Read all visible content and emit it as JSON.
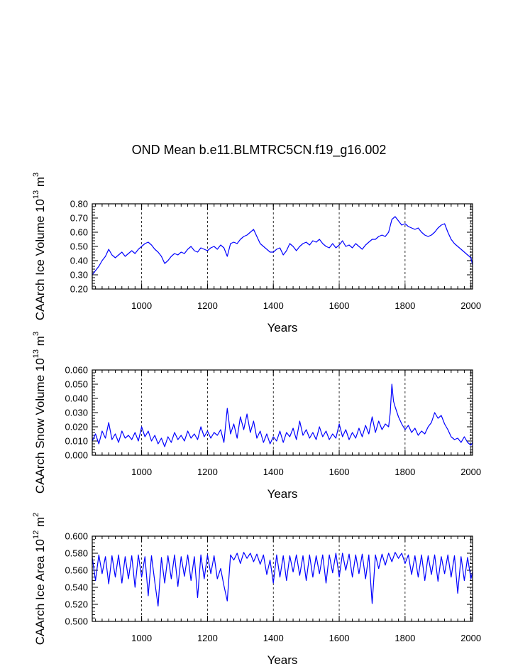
{
  "title": "OND Mean b.e11.BLMTRC5CN.f19_g16.002",
  "colors": {
    "series": "#0000ff",
    "axis": "#000000",
    "grid": "#000000"
  },
  "chart_data": [
    {
      "type": "line",
      "ylabel": "CAArch Ice Volume 10",
      "ylabel_exp": "13",
      "ylabel_unit": " m",
      "ylabel_unit_exp": "3",
      "xlabel": "Years",
      "xlim": [
        850,
        2005
      ],
      "ylim": [
        0.2,
        0.8
      ],
      "xticks": [
        1000,
        1200,
        1400,
        1600,
        1800,
        2000
      ],
      "yticks": [
        0.2,
        0.3,
        0.4,
        0.5,
        0.6,
        0.7,
        0.8
      ],
      "ytick_labels": [
        "0.20",
        "0.30",
        "0.40",
        "0.50",
        "0.60",
        "0.70",
        "0.80"
      ],
      "grid_x": true,
      "series": [
        {
          "name": "Ice Volume",
          "x": [
            850,
            860,
            870,
            880,
            890,
            900,
            910,
            920,
            930,
            940,
            950,
            960,
            970,
            980,
            990,
            1000,
            1010,
            1020,
            1030,
            1040,
            1050,
            1060,
            1070,
            1080,
            1090,
            1100,
            1110,
            1120,
            1130,
            1140,
            1150,
            1160,
            1170,
            1180,
            1190,
            1200,
            1210,
            1220,
            1230,
            1240,
            1250,
            1260,
            1270,
            1280,
            1290,
            1300,
            1310,
            1320,
            1330,
            1340,
            1350,
            1360,
            1370,
            1380,
            1390,
            1400,
            1410,
            1420,
            1430,
            1440,
            1450,
            1460,
            1470,
            1480,
            1490,
            1500,
            1510,
            1520,
            1530,
            1540,
            1550,
            1560,
            1570,
            1580,
            1590,
            1600,
            1610,
            1620,
            1630,
            1640,
            1650,
            1660,
            1670,
            1680,
            1690,
            1700,
            1710,
            1720,
            1730,
            1740,
            1750,
            1760,
            1770,
            1780,
            1790,
            1800,
            1810,
            1820,
            1830,
            1840,
            1850,
            1860,
            1870,
            1880,
            1890,
            1900,
            1910,
            1920,
            1930,
            1940,
            1950,
            1960,
            1970,
            1980,
            1990,
            2000,
            2005
          ],
          "y": [
            0.3,
            0.33,
            0.36,
            0.4,
            0.43,
            0.48,
            0.44,
            0.42,
            0.44,
            0.46,
            0.43,
            0.45,
            0.47,
            0.45,
            0.48,
            0.5,
            0.52,
            0.53,
            0.51,
            0.48,
            0.46,
            0.43,
            0.38,
            0.4,
            0.43,
            0.45,
            0.44,
            0.46,
            0.45,
            0.48,
            0.5,
            0.47,
            0.46,
            0.49,
            0.48,
            0.47,
            0.49,
            0.5,
            0.48,
            0.51,
            0.49,
            0.43,
            0.52,
            0.53,
            0.52,
            0.55,
            0.57,
            0.58,
            0.6,
            0.62,
            0.57,
            0.52,
            0.5,
            0.48,
            0.46,
            0.46,
            0.48,
            0.49,
            0.44,
            0.47,
            0.52,
            0.5,
            0.47,
            0.5,
            0.52,
            0.53,
            0.51,
            0.54,
            0.53,
            0.55,
            0.52,
            0.5,
            0.49,
            0.52,
            0.49,
            0.51,
            0.54,
            0.5,
            0.51,
            0.49,
            0.52,
            0.5,
            0.48,
            0.51,
            0.53,
            0.55,
            0.55,
            0.57,
            0.58,
            0.57,
            0.6,
            0.69,
            0.71,
            0.68,
            0.65,
            0.66,
            0.64,
            0.63,
            0.62,
            0.63,
            0.6,
            0.58,
            0.57,
            0.58,
            0.6,
            0.63,
            0.65,
            0.66,
            0.6,
            0.55,
            0.52,
            0.5,
            0.48,
            0.46,
            0.44,
            0.42,
            0.37
          ]
        }
      ]
    },
    {
      "type": "line",
      "ylabel": "CAArch Snow Volume 10",
      "ylabel_exp": "13",
      "ylabel_unit": " m",
      "ylabel_unit_exp": "3",
      "xlabel": "Years",
      "xlim": [
        850,
        2005
      ],
      "ylim": [
        0.0,
        0.06
      ],
      "xticks": [
        1000,
        1200,
        1400,
        1600,
        1800,
        2000
      ],
      "yticks": [
        0.0,
        0.01,
        0.02,
        0.03,
        0.04,
        0.05,
        0.06
      ],
      "ytick_labels": [
        "0.000",
        "0.010",
        "0.020",
        "0.030",
        "0.040",
        "0.050",
        "0.060"
      ],
      "grid_x": true,
      "series": [
        {
          "name": "Snow Volume",
          "x": [
            850,
            860,
            870,
            880,
            890,
            900,
            910,
            920,
            930,
            940,
            950,
            960,
            970,
            980,
            990,
            1000,
            1010,
            1020,
            1030,
            1040,
            1050,
            1060,
            1070,
            1080,
            1090,
            1100,
            1110,
            1120,
            1130,
            1140,
            1150,
            1160,
            1170,
            1180,
            1190,
            1200,
            1210,
            1220,
            1230,
            1240,
            1250,
            1260,
            1270,
            1280,
            1290,
            1300,
            1310,
            1320,
            1330,
            1340,
            1350,
            1360,
            1370,
            1380,
            1390,
            1400,
            1410,
            1420,
            1430,
            1440,
            1450,
            1460,
            1470,
            1480,
            1490,
            1500,
            1510,
            1520,
            1530,
            1540,
            1550,
            1560,
            1570,
            1580,
            1590,
            1600,
            1610,
            1620,
            1630,
            1640,
            1650,
            1660,
            1670,
            1680,
            1690,
            1700,
            1710,
            1720,
            1730,
            1740,
            1750,
            1755,
            1760,
            1765,
            1770,
            1780,
            1790,
            1800,
            1810,
            1820,
            1830,
            1840,
            1850,
            1860,
            1870,
            1880,
            1890,
            1900,
            1910,
            1920,
            1930,
            1940,
            1950,
            1960,
            1970,
            1980,
            1990,
            2000,
            2005
          ],
          "y": [
            0.01,
            0.015,
            0.008,
            0.017,
            0.012,
            0.023,
            0.011,
            0.015,
            0.009,
            0.017,
            0.012,
            0.014,
            0.011,
            0.016,
            0.01,
            0.02,
            0.013,
            0.017,
            0.01,
            0.014,
            0.008,
            0.012,
            0.006,
            0.013,
            0.009,
            0.016,
            0.011,
            0.014,
            0.01,
            0.017,
            0.012,
            0.015,
            0.011,
            0.02,
            0.013,
            0.017,
            0.012,
            0.016,
            0.014,
            0.018,
            0.009,
            0.033,
            0.015,
            0.022,
            0.012,
            0.027,
            0.018,
            0.029,
            0.016,
            0.024,
            0.012,
            0.017,
            0.009,
            0.015,
            0.008,
            0.013,
            0.01,
            0.017,
            0.009,
            0.016,
            0.013,
            0.019,
            0.011,
            0.024,
            0.014,
            0.018,
            0.012,
            0.016,
            0.011,
            0.02,
            0.013,
            0.017,
            0.011,
            0.015,
            0.012,
            0.022,
            0.013,
            0.018,
            0.011,
            0.016,
            0.012,
            0.019,
            0.013,
            0.021,
            0.015,
            0.027,
            0.016,
            0.024,
            0.018,
            0.022,
            0.02,
            0.03,
            0.05,
            0.038,
            0.034,
            0.027,
            0.022,
            0.018,
            0.021,
            0.016,
            0.019,
            0.014,
            0.017,
            0.015,
            0.02,
            0.023,
            0.03,
            0.026,
            0.028,
            0.022,
            0.018,
            0.013,
            0.011,
            0.012,
            0.009,
            0.013,
            0.009,
            0.007,
            0.009
          ]
        }
      ]
    },
    {
      "type": "line",
      "ylabel": "CAArch Ice Area 10",
      "ylabel_exp": "12",
      "ylabel_unit": " m",
      "ylabel_unit_exp": "2",
      "xlabel": "Years",
      "xlim": [
        850,
        2005
      ],
      "ylim": [
        0.5,
        0.6
      ],
      "xticks": [
        1000,
        1200,
        1400,
        1600,
        1800,
        2000
      ],
      "yticks": [
        0.5,
        0.52,
        0.54,
        0.56,
        0.58,
        0.6
      ],
      "ytick_labels": [
        "0.500",
        "0.520",
        "0.540",
        "0.560",
        "0.580",
        "0.600"
      ],
      "grid_x": true,
      "series": [
        {
          "name": "Ice Area",
          "x": [
            850,
            860,
            870,
            880,
            890,
            900,
            910,
            920,
            930,
            940,
            950,
            960,
            970,
            980,
            990,
            1000,
            1010,
            1020,
            1030,
            1040,
            1050,
            1060,
            1070,
            1080,
            1090,
            1100,
            1110,
            1120,
            1130,
            1140,
            1150,
            1160,
            1170,
            1180,
            1190,
            1200,
            1210,
            1220,
            1230,
            1240,
            1250,
            1260,
            1270,
            1280,
            1290,
            1300,
            1310,
            1320,
            1330,
            1340,
            1350,
            1360,
            1370,
            1380,
            1390,
            1400,
            1410,
            1420,
            1430,
            1440,
            1450,
            1460,
            1470,
            1480,
            1490,
            1500,
            1510,
            1520,
            1530,
            1540,
            1550,
            1560,
            1570,
            1580,
            1590,
            1600,
            1610,
            1620,
            1630,
            1640,
            1650,
            1660,
            1670,
            1680,
            1690,
            1700,
            1710,
            1720,
            1730,
            1740,
            1750,
            1760,
            1770,
            1780,
            1790,
            1800,
            1810,
            1820,
            1830,
            1840,
            1850,
            1860,
            1870,
            1880,
            1890,
            1900,
            1910,
            1920,
            1930,
            1940,
            1950,
            1960,
            1970,
            1980,
            1990,
            2000,
            2005
          ],
          "y": [
            0.575,
            0.548,
            0.578,
            0.556,
            0.576,
            0.544,
            0.577,
            0.552,
            0.578,
            0.545,
            0.576,
            0.55,
            0.577,
            0.54,
            0.578,
            0.552,
            0.576,
            0.53,
            0.577,
            0.546,
            0.518,
            0.575,
            0.545,
            0.577,
            0.55,
            0.578,
            0.541,
            0.576,
            0.553,
            0.578,
            0.548,
            0.576,
            0.528,
            0.578,
            0.55,
            0.578,
            0.556,
            0.577,
            0.55,
            0.562,
            0.542,
            0.524,
            0.578,
            0.572,
            0.58,
            0.568,
            0.581,
            0.574,
            0.58,
            0.57,
            0.579,
            0.567,
            0.578,
            0.555,
            0.572,
            0.545,
            0.578,
            0.552,
            0.577,
            0.548,
            0.577,
            0.558,
            0.578,
            0.554,
            0.577,
            0.548,
            0.578,
            0.552,
            0.577,
            0.556,
            0.578,
            0.545,
            0.578,
            0.557,
            0.58,
            0.552,
            0.58,
            0.56,
            0.579,
            0.552,
            0.578,
            0.556,
            0.579,
            0.55,
            0.578,
            0.521,
            0.578,
            0.562,
            0.579,
            0.566,
            0.58,
            0.57,
            0.581,
            0.574,
            0.58,
            0.568,
            0.578,
            0.555,
            0.577,
            0.552,
            0.578,
            0.548,
            0.577,
            0.555,
            0.578,
            0.547,
            0.576,
            0.556,
            0.578,
            0.552,
            0.577,
            0.533,
            0.576,
            0.548,
            0.575,
            0.55,
            0.558
          ]
        }
      ]
    }
  ]
}
